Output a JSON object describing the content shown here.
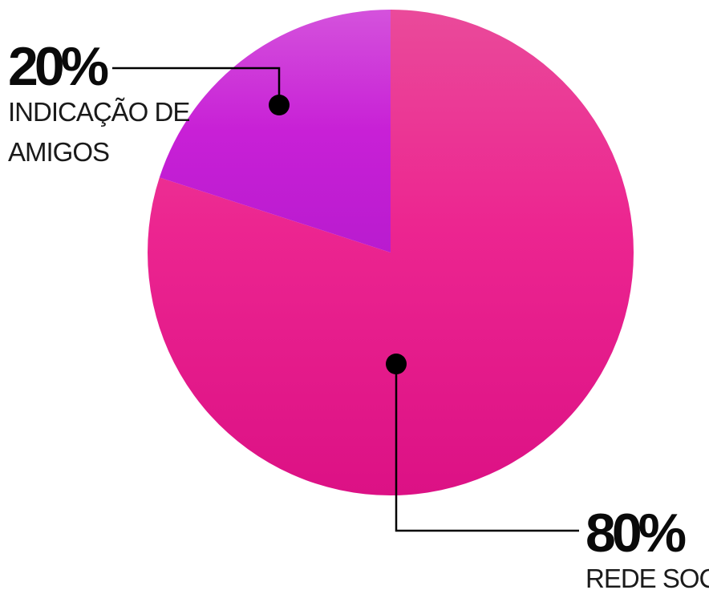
{
  "chart_data": {
    "type": "pie",
    "slices": [
      {
        "label_lines": [
          "REDE SOCIAL"
        ],
        "value": 80,
        "value_label": "80%",
        "color": "#e8248e"
      },
      {
        "label_lines": [
          "INDICAÇÃO DE",
          "AMIGOS"
        ],
        "value": 20,
        "value_label": "20%",
        "color": "#c823d6"
      }
    ]
  }
}
